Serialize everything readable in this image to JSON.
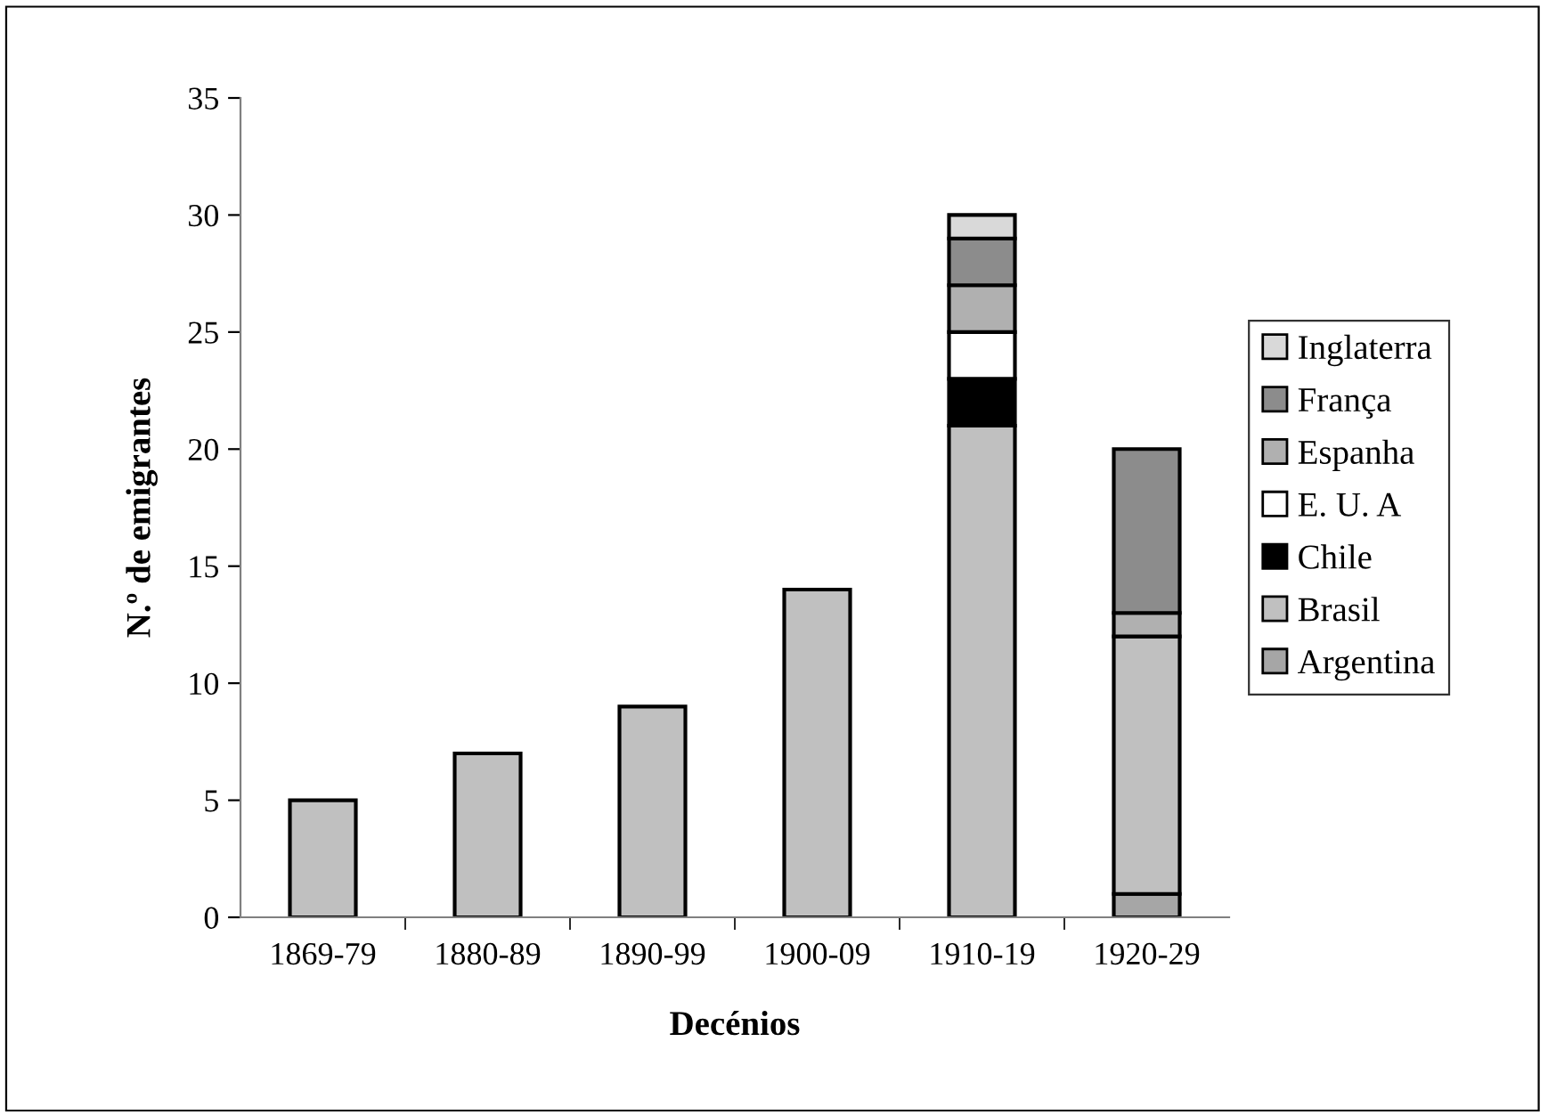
{
  "chart_data": {
    "type": "bar",
    "stacked": true,
    "xlabel": "Decénios",
    "ylabel": "N.º de emigrantes",
    "categories": [
      "1869-79",
      "1880-89",
      "1890-99",
      "1900-09",
      "1910-19",
      "1920-29"
    ],
    "series": [
      {
        "name": "Argentina",
        "color": "#a6a6a6",
        "values": [
          0,
          0,
          0,
          0,
          0,
          1
        ]
      },
      {
        "name": "Brasil",
        "color": "#c0c0c0",
        "values": [
          5,
          7,
          9,
          14,
          21,
          11
        ]
      },
      {
        "name": "Chile",
        "color": "#000000",
        "values": [
          0,
          0,
          0,
          0,
          2,
          0
        ]
      },
      {
        "name": "E. U. A",
        "color": "#ffffff",
        "values": [
          0,
          0,
          0,
          0,
          2,
          0
        ]
      },
      {
        "name": "Espanha",
        "color": "#b0b0b0",
        "values": [
          0,
          0,
          0,
          0,
          2,
          1
        ]
      },
      {
        "name": "França",
        "color": "#8c8c8c",
        "values": [
          0,
          0,
          0,
          0,
          2,
          7
        ]
      },
      {
        "name": "Inglaterra",
        "color": "#d9d9d9",
        "values": [
          0,
          0,
          0,
          0,
          1,
          0
        ]
      }
    ],
    "ylim": [
      0,
      35
    ],
    "yticks": [
      0,
      5,
      10,
      15,
      20,
      25,
      30,
      35
    ],
    "grid": false,
    "legend": "right"
  }
}
